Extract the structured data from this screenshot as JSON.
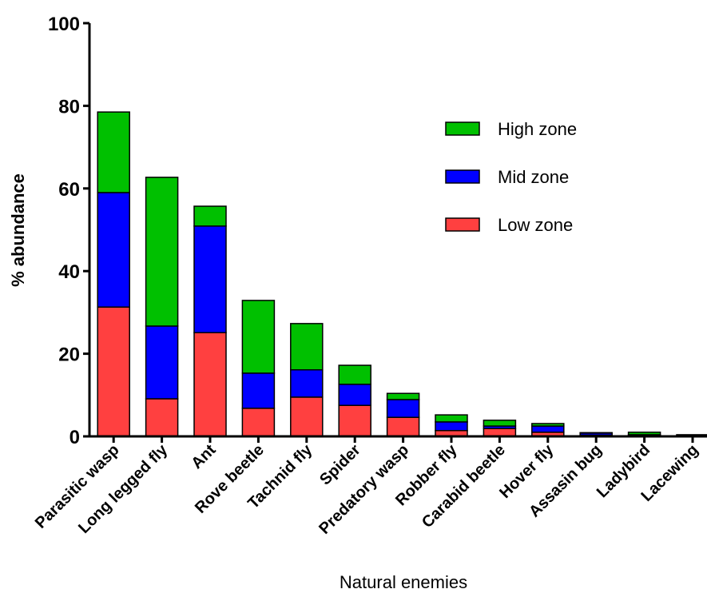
{
  "chart_data": {
    "type": "stacked_bar",
    "x_label": "Natural enemies",
    "y_label": "% abundance",
    "categories": [
      "Parasitic wasp",
      "Long legged fly",
      "Ant",
      "Rove beetle",
      "Tachnid fly",
      "Spider",
      "Predatory wasp",
      "Robber fly",
      "Carabid beetle",
      "Hover fly",
      "Assasin bug",
      "Ladybird",
      "Lacewing"
    ],
    "series": [
      {
        "name": "Low zone",
        "color": "#ff4040",
        "values": [
          31.3,
          9.1,
          25.1,
          6.8,
          9.5,
          7.5,
          4.6,
          1.4,
          1.9,
          1.0,
          0.3,
          0.2,
          0.1
        ]
      },
      {
        "name": "Mid zone",
        "color": "#0000ff",
        "values": [
          27.7,
          17.6,
          25.8,
          8.5,
          6.6,
          5.1,
          4.3,
          2.1,
          0.6,
          1.5,
          0.5,
          0.2,
          0.1
        ]
      },
      {
        "name": "High zone",
        "color": "#00c000",
        "values": [
          19.5,
          36.0,
          4.8,
          17.6,
          11.2,
          4.6,
          1.5,
          1.7,
          1.4,
          0.6,
          0.1,
          0.6,
          0.2
        ]
      }
    ],
    "ylim": [
      0,
      100
    ],
    "yticks": [
      0,
      20,
      40,
      60,
      80,
      100
    ]
  }
}
